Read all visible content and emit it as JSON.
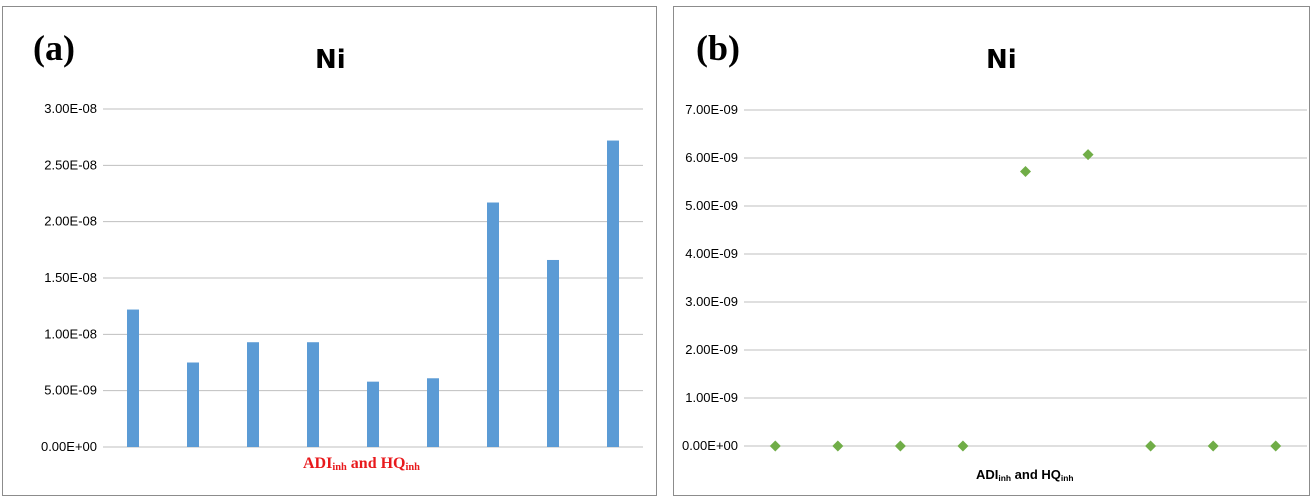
{
  "panels": [
    {
      "label": "(a)",
      "xlabel": {
        "main1": "ADI",
        "sub1": "inh",
        "mid": " and HQ",
        "sub2": "inh"
      },
      "ytick_labels": [
        "0.00E+00",
        "5.00E-09",
        "1.00E-08",
        "1.50E-08",
        "2.00E-08",
        "2.50E-08",
        "3.00E-08"
      ]
    },
    {
      "label": "(b)",
      "xlabel": {
        "main1": "ADI",
        "sub1": "inh",
        "mid": " and HQ",
        "sub2": "inh"
      },
      "ytick_labels": [
        "0.00E+00",
        "1.00E-09",
        "2.00E-09",
        "3.00E-09",
        "4.00E-09",
        "5.00E-09",
        "6.00E-09",
        "7.00E-09"
      ]
    }
  ],
  "chart_data": [
    {
      "type": "bar",
      "title": "Ni",
      "xlabel": "ADIinh and HQinh",
      "ylim": [
        0,
        3e-08
      ],
      "yticks": [
        0,
        5e-09,
        1e-08,
        1.5e-08,
        2e-08,
        2.5e-08,
        3e-08
      ],
      "grid": "horizontal",
      "color": "#5b9bd5",
      "values": [
        1.22e-08,
        7.5e-09,
        9.3e-09,
        9.3e-09,
        5.8e-09,
        6.1e-09,
        2.17e-08,
        1.66e-08,
        2.72e-08
      ]
    },
    {
      "type": "scatter",
      "title": "Ni",
      "xlabel": "ADIinh and HQinh",
      "ylim": [
        0,
        7e-09
      ],
      "yticks": [
        0,
        1e-09,
        2e-09,
        3e-09,
        4e-09,
        5e-09,
        6e-09,
        7e-09
      ],
      "grid": "horizontal",
      "color": "#70ad47",
      "marker": "diamond",
      "x": [
        1,
        2,
        3,
        4,
        5,
        6,
        7,
        8,
        9
      ],
      "values": [
        0,
        0,
        0,
        0,
        5.72e-09,
        6.07e-09,
        0,
        0,
        0
      ]
    }
  ]
}
